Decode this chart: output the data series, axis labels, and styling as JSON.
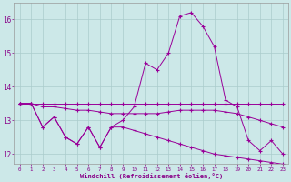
{
  "xlabel": "Windchill (Refroidissement éolien,°C)",
  "x": [
    0,
    1,
    2,
    3,
    4,
    5,
    6,
    7,
    8,
    9,
    10,
    11,
    12,
    13,
    14,
    15,
    16,
    17,
    18,
    19,
    20,
    21,
    22,
    23
  ],
  "line_main": [
    13.5,
    13.5,
    12.8,
    13.1,
    12.5,
    12.3,
    12.8,
    12.2,
    12.8,
    13.0,
    13.4,
    14.7,
    14.5,
    15.0,
    16.1,
    16.2,
    15.8,
    15.2,
    13.6,
    13.4,
    12.4,
    12.1,
    12.4,
    12.0
  ],
  "line_rise": [
    13.5,
    13.5,
    13.5,
    13.5,
    13.5,
    13.5,
    13.5,
    13.5,
    13.5,
    13.5,
    13.5,
    13.5,
    13.5,
    13.5,
    13.5,
    13.5,
    13.5,
    13.5,
    13.5,
    13.5,
    13.5,
    13.5,
    13.5,
    13.5
  ],
  "line_slow_decline": [
    13.5,
    13.5,
    13.4,
    13.4,
    13.35,
    13.3,
    13.3,
    13.25,
    13.2,
    13.2,
    13.2,
    13.2,
    13.2,
    13.25,
    13.3,
    13.3,
    13.3,
    13.3,
    13.25,
    13.2,
    13.1,
    13.0,
    12.9,
    12.8
  ],
  "line_decline": [
    13.5,
    13.5,
    12.8,
    13.1,
    12.5,
    12.3,
    12.8,
    12.2,
    12.8,
    12.8,
    12.7,
    12.6,
    12.5,
    12.4,
    12.3,
    12.2,
    12.1,
    12.0,
    11.95,
    11.9,
    11.85,
    11.8,
    11.75,
    11.7
  ],
  "line_color": "#990099",
  "bg_color": "#cce8e8",
  "grid_color": "#aacccc",
  "ylim": [
    11.7,
    16.5
  ],
  "yticks": [
    12,
    13,
    14,
    15,
    16
  ],
  "text_color": "#880088"
}
